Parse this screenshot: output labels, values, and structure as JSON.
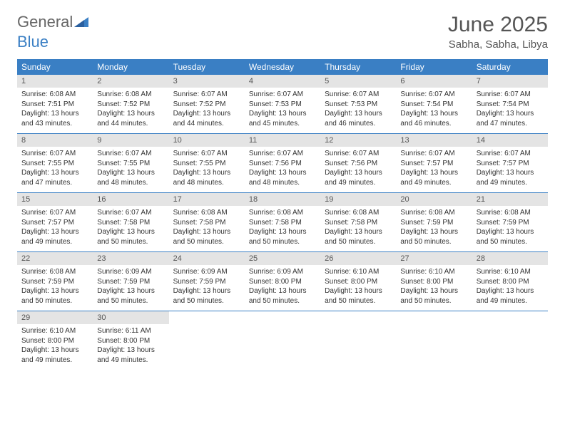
{
  "logo": {
    "word1": "General",
    "word2": "Blue"
  },
  "title": {
    "month": "June 2025",
    "location": "Sabha, Sabha, Libya"
  },
  "colors": {
    "header_bg": "#3a7fc4",
    "header_text": "#ffffff",
    "daynum_bg": "#e4e4e4",
    "text": "#333333",
    "title_text": "#555555",
    "week_border": "#3a7fc4",
    "page_bg": "#ffffff"
  },
  "weekdays": [
    "Sunday",
    "Monday",
    "Tuesday",
    "Wednesday",
    "Thursday",
    "Friday",
    "Saturday"
  ],
  "days": [
    {
      "n": "1",
      "sr": "Sunrise: 6:08 AM",
      "ss": "Sunset: 7:51 PM",
      "dl": "Daylight: 13 hours and 43 minutes."
    },
    {
      "n": "2",
      "sr": "Sunrise: 6:08 AM",
      "ss": "Sunset: 7:52 PM",
      "dl": "Daylight: 13 hours and 44 minutes."
    },
    {
      "n": "3",
      "sr": "Sunrise: 6:07 AM",
      "ss": "Sunset: 7:52 PM",
      "dl": "Daylight: 13 hours and 44 minutes."
    },
    {
      "n": "4",
      "sr": "Sunrise: 6:07 AM",
      "ss": "Sunset: 7:53 PM",
      "dl": "Daylight: 13 hours and 45 minutes."
    },
    {
      "n": "5",
      "sr": "Sunrise: 6:07 AM",
      "ss": "Sunset: 7:53 PM",
      "dl": "Daylight: 13 hours and 46 minutes."
    },
    {
      "n": "6",
      "sr": "Sunrise: 6:07 AM",
      "ss": "Sunset: 7:54 PM",
      "dl": "Daylight: 13 hours and 46 minutes."
    },
    {
      "n": "7",
      "sr": "Sunrise: 6:07 AM",
      "ss": "Sunset: 7:54 PM",
      "dl": "Daylight: 13 hours and 47 minutes."
    },
    {
      "n": "8",
      "sr": "Sunrise: 6:07 AM",
      "ss": "Sunset: 7:55 PM",
      "dl": "Daylight: 13 hours and 47 minutes."
    },
    {
      "n": "9",
      "sr": "Sunrise: 6:07 AM",
      "ss": "Sunset: 7:55 PM",
      "dl": "Daylight: 13 hours and 48 minutes."
    },
    {
      "n": "10",
      "sr": "Sunrise: 6:07 AM",
      "ss": "Sunset: 7:55 PM",
      "dl": "Daylight: 13 hours and 48 minutes."
    },
    {
      "n": "11",
      "sr": "Sunrise: 6:07 AM",
      "ss": "Sunset: 7:56 PM",
      "dl": "Daylight: 13 hours and 48 minutes."
    },
    {
      "n": "12",
      "sr": "Sunrise: 6:07 AM",
      "ss": "Sunset: 7:56 PM",
      "dl": "Daylight: 13 hours and 49 minutes."
    },
    {
      "n": "13",
      "sr": "Sunrise: 6:07 AM",
      "ss": "Sunset: 7:57 PM",
      "dl": "Daylight: 13 hours and 49 minutes."
    },
    {
      "n": "14",
      "sr": "Sunrise: 6:07 AM",
      "ss": "Sunset: 7:57 PM",
      "dl": "Daylight: 13 hours and 49 minutes."
    },
    {
      "n": "15",
      "sr": "Sunrise: 6:07 AM",
      "ss": "Sunset: 7:57 PM",
      "dl": "Daylight: 13 hours and 49 minutes."
    },
    {
      "n": "16",
      "sr": "Sunrise: 6:07 AM",
      "ss": "Sunset: 7:58 PM",
      "dl": "Daylight: 13 hours and 50 minutes."
    },
    {
      "n": "17",
      "sr": "Sunrise: 6:08 AM",
      "ss": "Sunset: 7:58 PM",
      "dl": "Daylight: 13 hours and 50 minutes."
    },
    {
      "n": "18",
      "sr": "Sunrise: 6:08 AM",
      "ss": "Sunset: 7:58 PM",
      "dl": "Daylight: 13 hours and 50 minutes."
    },
    {
      "n": "19",
      "sr": "Sunrise: 6:08 AM",
      "ss": "Sunset: 7:58 PM",
      "dl": "Daylight: 13 hours and 50 minutes."
    },
    {
      "n": "20",
      "sr": "Sunrise: 6:08 AM",
      "ss": "Sunset: 7:59 PM",
      "dl": "Daylight: 13 hours and 50 minutes."
    },
    {
      "n": "21",
      "sr": "Sunrise: 6:08 AM",
      "ss": "Sunset: 7:59 PM",
      "dl": "Daylight: 13 hours and 50 minutes."
    },
    {
      "n": "22",
      "sr": "Sunrise: 6:08 AM",
      "ss": "Sunset: 7:59 PM",
      "dl": "Daylight: 13 hours and 50 minutes."
    },
    {
      "n": "23",
      "sr": "Sunrise: 6:09 AM",
      "ss": "Sunset: 7:59 PM",
      "dl": "Daylight: 13 hours and 50 minutes."
    },
    {
      "n": "24",
      "sr": "Sunrise: 6:09 AM",
      "ss": "Sunset: 7:59 PM",
      "dl": "Daylight: 13 hours and 50 minutes."
    },
    {
      "n": "25",
      "sr": "Sunrise: 6:09 AM",
      "ss": "Sunset: 8:00 PM",
      "dl": "Daylight: 13 hours and 50 minutes."
    },
    {
      "n": "26",
      "sr": "Sunrise: 6:10 AM",
      "ss": "Sunset: 8:00 PM",
      "dl": "Daylight: 13 hours and 50 minutes."
    },
    {
      "n": "27",
      "sr": "Sunrise: 6:10 AM",
      "ss": "Sunset: 8:00 PM",
      "dl": "Daylight: 13 hours and 50 minutes."
    },
    {
      "n": "28",
      "sr": "Sunrise: 6:10 AM",
      "ss": "Sunset: 8:00 PM",
      "dl": "Daylight: 13 hours and 49 minutes."
    },
    {
      "n": "29",
      "sr": "Sunrise: 6:10 AM",
      "ss": "Sunset: 8:00 PM",
      "dl": "Daylight: 13 hours and 49 minutes."
    },
    {
      "n": "30",
      "sr": "Sunrise: 6:11 AM",
      "ss": "Sunset: 8:00 PM",
      "dl": "Daylight: 13 hours and 49 minutes."
    }
  ]
}
